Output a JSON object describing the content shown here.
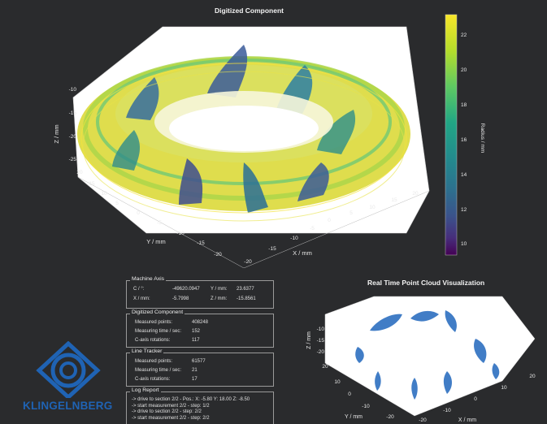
{
  "main_plot": {
    "title": "Digitized Component",
    "z_label": "Z / mm",
    "y_label": "Y / mm",
    "x_label": "X / mm",
    "z_ticks": [
      "-10",
      "-15",
      "-20",
      "-25"
    ],
    "y_ticks": [
      "20",
      "15",
      "10",
      "5",
      "0",
      "-5",
      "-10",
      "-15",
      "-20"
    ],
    "x_ticks": [
      "-20",
      "-15",
      "-10",
      "-5",
      "0",
      "5",
      "10",
      "15",
      "20"
    ]
  },
  "colorbar": {
    "label": "Radius / mm",
    "ticks": [
      "22",
      "20",
      "18",
      "16",
      "14",
      "12",
      "10"
    ],
    "colors": [
      "#f9e629",
      "#b5dd2b",
      "#5ec962",
      "#21a685",
      "#238a8d",
      "#2c728e",
      "#3b528b",
      "#472d7b",
      "#440154"
    ]
  },
  "machine_axis": {
    "legend": "Machine Axis",
    "c_label": "C / °:",
    "c_value": "-49620.0947",
    "y_label": "Y / mm:",
    "y_value": "23.6377",
    "x_label": "X / mm:",
    "x_value": "-5.7998",
    "z_label": "Z / mm:",
    "z_value": "-15.8561"
  },
  "digitized_component": {
    "legend": "Digitized Component",
    "rows": [
      {
        "label": "Measured points:",
        "value": "408248"
      },
      {
        "label": "Measuring time / sec:",
        "value": "152"
      },
      {
        "label": "C-axis rotations:",
        "value": "117"
      }
    ]
  },
  "line_tracker": {
    "legend": "Line Tracker",
    "rows": [
      {
        "label": "Measured points:",
        "value": "61577"
      },
      {
        "label": "Measuring time / sec:",
        "value": "21"
      },
      {
        "label": "C-axis rotations:",
        "value": "17"
      }
    ]
  },
  "log_report": {
    "legend": "Log Report",
    "lines": [
      "-> drive to section 2/2 - Pos.: X: -5.80 Y: 18.00 Z: -8.50",
      "-> start measurement 2/2 - step: 1/2",
      "-> drive to section 2/2 - step: 2/2",
      "-> start measurement 2/2 - step: 2/2"
    ]
  },
  "realtime_plot": {
    "title": "Real Time Point Cloud Visualization",
    "z_label": "Z / mm",
    "y_label": "Y / mm",
    "x_label": "X / mm",
    "z_ticks": [
      "-10",
      "-15",
      "-20"
    ],
    "y_ticks": [
      "20",
      "10",
      "0",
      "-10",
      "-20"
    ],
    "x_ticks": [
      "-20",
      "-10",
      "0",
      "10",
      "20"
    ]
  },
  "logo": {
    "text": "KLINGELNBERG",
    "color": "#1f63b4"
  }
}
